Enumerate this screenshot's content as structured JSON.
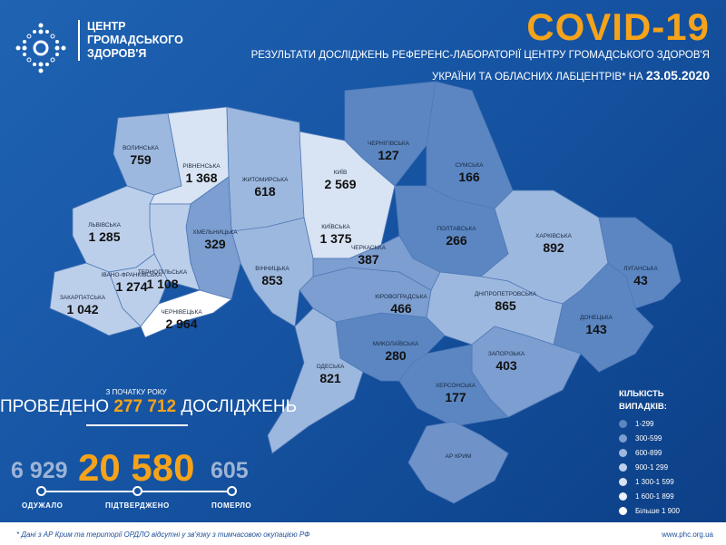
{
  "header": {
    "org_name": [
      "ЦЕНТР",
      "ГРОМАДСЬКОГО",
      "ЗДОРОВ'Я"
    ],
    "title": "COVID-19",
    "subtitle_line1": "РЕЗУЛЬТАТИ ДОСЛІДЖЕНЬ РЕФЕРЕНС-ЛАБОРАТОРІЇ ЦЕНТРУ ГРОМАДСЬКОГО ЗДОРОВ'Я",
    "subtitle_line2": "УКРАЇНИ ТА ОБЛАСНИХ ЛАБЦЕНТРІВ* НА",
    "date": "23.05.2020"
  },
  "regions": [
    {
      "id": "volyn",
      "name": "ВОЛИНСЬКА",
      "cases": "759"
    },
    {
      "id": "rivne",
      "name": "РІВНЕНСЬКА",
      "cases": "1 368"
    },
    {
      "id": "zhytomyr",
      "name": "ЖИТОМИРСЬКА",
      "cases": "618"
    },
    {
      "id": "kyiv-city",
      "name": "КИЇВ",
      "cases": "2 569"
    },
    {
      "id": "kyiv",
      "name": "КИЇВСЬКА",
      "cases": "1 375"
    },
    {
      "id": "chernihiv",
      "name": "ЧЕРНІГІВСЬКА",
      "cases": "127"
    },
    {
      "id": "sumy",
      "name": "СУМСЬКА",
      "cases": "166"
    },
    {
      "id": "poltava",
      "name": "ПОЛТАВСЬКА",
      "cases": "266"
    },
    {
      "id": "kharkiv",
      "name": "ХАРКІВСЬКА",
      "cases": "892"
    },
    {
      "id": "luhansk",
      "name": "ЛУГАНСЬКА",
      "cases": "43"
    },
    {
      "id": "donetsk",
      "name": "ДОНЕЦЬКА",
      "cases": "143"
    },
    {
      "id": "dnipro",
      "name": "ДНІПРОПЕТРОВСЬКА",
      "cases": "865"
    },
    {
      "id": "zaporizhzhia",
      "name": "ЗАПОРІЗЬКА",
      "cases": "403"
    },
    {
      "id": "kherson",
      "name": "ХЕРСОНСЬКА",
      "cases": "177"
    },
    {
      "id": "mykolaiv",
      "name": "МИКОЛАЇВСЬКА",
      "cases": "280"
    },
    {
      "id": "odesa",
      "name": "ОДЕСЬКА",
      "cases": "821"
    },
    {
      "id": "kirovohrad",
      "name": "КІРОВОГРАДСЬКА",
      "cases": "466"
    },
    {
      "id": "cherkasy",
      "name": "ЧЕРКАСЬКА",
      "cases": "387"
    },
    {
      "id": "vinnytsia",
      "name": "ВІННИЦЬКА",
      "cases": "853"
    },
    {
      "id": "khmelnytskyi",
      "name": "ХМЕЛЬНИЦЬКА",
      "cases": "329"
    },
    {
      "id": "ternopil",
      "name": "ТЕРНОПІЛЬСЬКА",
      "cases": "1 108"
    },
    {
      "id": "lviv",
      "name": "ЛЬВІВСЬКА",
      "cases": "1 285"
    },
    {
      "id": "ivano-frankivsk",
      "name": "ІВАНО-ФРАНКІВСЬКА",
      "cases": "1 274"
    },
    {
      "id": "zakarpattia",
      "name": "ЗАКАРПАТСЬКА",
      "cases": "1 042"
    },
    {
      "id": "chernivtsi",
      "name": "ЧЕРНІВЕЦЬКА",
      "cases": "2 964"
    },
    {
      "id": "crimea",
      "name": "АР КРИМ",
      "cases": ""
    }
  ],
  "summary": {
    "since_label": "З ПОЧАТКУ РОКУ",
    "tests_prefix": "ПРОВЕДЕНО",
    "tests_value": "277 712",
    "tests_suffix": "ДОСЛІДЖЕНЬ",
    "recovered": "6 929",
    "recovered_label": "ОДУЖАЛО",
    "confirmed": "20 580",
    "confirmed_label": "ПІДТВЕРДЖЕНО",
    "deaths": "605",
    "deaths_label": "ПОМЕРЛО"
  },
  "legend": {
    "title_line1": "КІЛЬКІСТЬ",
    "title_line2": "ВИПАДКІВ:",
    "items": [
      {
        "label": "1-299",
        "color": "#5b86c2"
      },
      {
        "label": "300-599",
        "color": "#7c9ed0"
      },
      {
        "label": "600-899",
        "color": "#9db8de"
      },
      {
        "label": "900-1 299",
        "color": "#bccfea"
      },
      {
        "label": "1 300-1 599",
        "color": "#d8e3f3"
      },
      {
        "label": "1 600-1 899",
        "color": "#ebf1f9"
      },
      {
        "label": "Більше 1 900",
        "color": "#ffffff"
      }
    ]
  },
  "footer": {
    "note": "* Дані з АР Крим та території ОРДЛО відсутні у зв'язку з тимчасовою окупацією РФ",
    "url": "www.phc.org.ua"
  },
  "colors": {
    "accent": "#f5a31a",
    "crimea": "#6f92c8"
  }
}
